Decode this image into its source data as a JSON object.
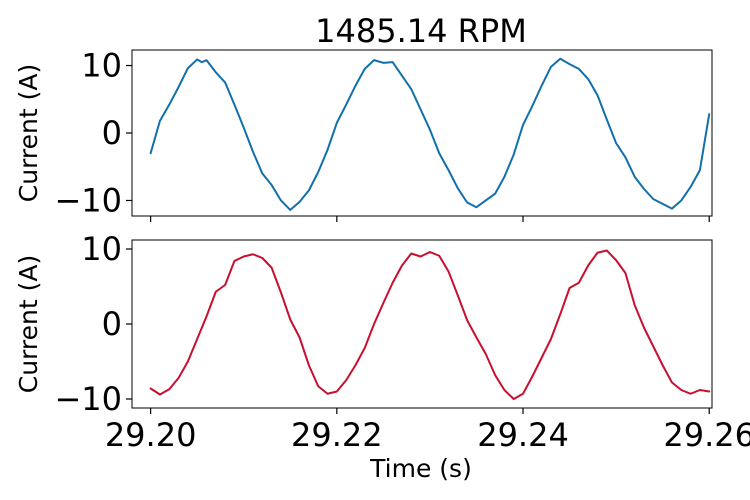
{
  "chart_data": {
    "title": "1485.14 RPM",
    "xlabel": "Time (s)",
    "x_tick_labels": [
      "29.20",
      "29.22",
      "29.24",
      "29.26"
    ],
    "x_ticks": [
      29.2,
      29.22,
      29.24,
      29.26
    ],
    "xlim": [
      29.198,
      29.2603
    ],
    "panels": [
      {
        "type": "line",
        "ylabel": "Current (A)",
        "ylim": [
          -12.3,
          12.3
        ],
        "y_ticks": [
          10,
          0,
          -10
        ],
        "y_tick_labels": [
          "10",
          "0",
          "−10"
        ],
        "series": [
          {
            "color": "#1170aa",
            "x": [
              29.2,
              29.201,
              29.202,
              29.203,
              29.204,
              29.205,
              29.2055,
              29.206,
              29.207,
              29.208,
              29.209,
              29.21,
              29.211,
              29.212,
              29.213,
              29.214,
              29.215,
              29.216,
              29.217,
              29.218,
              29.219,
              29.22,
              29.221,
              29.222,
              29.223,
              29.224,
              29.225,
              29.226,
              29.227,
              29.228,
              29.229,
              29.23,
              29.231,
              29.232,
              29.233,
              29.234,
              29.235,
              29.236,
              29.237,
              29.238,
              29.239,
              29.24,
              29.241,
              29.242,
              29.243,
              29.244,
              29.245,
              29.246,
              29.247,
              29.248,
              29.249,
              29.25,
              29.251,
              29.252,
              29.253,
              29.254,
              29.255,
              29.256,
              29.257,
              29.258,
              29.259,
              29.26
            ],
            "y": [
              -3.0,
              1.8,
              4.2,
              6.8,
              9.6,
              10.9,
              10.5,
              10.8,
              9.0,
              7.5,
              4.2,
              0.8,
              -2.8,
              -6.0,
              -7.7,
              -10.0,
              -11.4,
              -10.2,
              -8.5,
              -5.8,
              -2.5,
              1.5,
              4.2,
              7.0,
              9.5,
              10.8,
              10.4,
              10.5,
              8.5,
              6.5,
              3.5,
              0.5,
              -3.0,
              -5.5,
              -8.2,
              -10.3,
              -11.0,
              -10.0,
              -9.0,
              -6.5,
              -3.2,
              1.2,
              4.0,
              7.0,
              9.8,
              11.0,
              10.2,
              9.5,
              8.0,
              5.6,
              2.0,
              -1.5,
              -3.6,
              -6.5,
              -8.3,
              -9.8,
              -10.5,
              -11.2,
              -10.0,
              -8.0,
              -5.5,
              2.8
            ]
          }
        ]
      },
      {
        "type": "line",
        "ylabel": "Current (A)",
        "ylim": [
          -11.2,
          11.2
        ],
        "y_ticks": [
          10,
          0,
          -10
        ],
        "y_tick_labels": [
          "10",
          "0",
          "−10"
        ],
        "series": [
          {
            "color": "#c8102e",
            "x": [
              29.2,
              29.201,
              29.202,
              29.203,
              29.204,
              29.205,
              29.206,
              29.207,
              29.208,
              29.209,
              29.21,
              29.211,
              29.212,
              29.213,
              29.214,
              29.215,
              29.216,
              29.217,
              29.218,
              29.219,
              29.22,
              29.221,
              29.222,
              29.223,
              29.224,
              29.225,
              29.226,
              29.227,
              29.228,
              29.229,
              29.23,
              29.231,
              29.232,
              29.233,
              29.234,
              29.235,
              29.236,
              29.237,
              29.238,
              29.239,
              29.24,
              29.241,
              29.242,
              29.243,
              29.244,
              29.245,
              29.246,
              29.247,
              29.248,
              29.249,
              29.25,
              29.251,
              29.252,
              29.253,
              29.254,
              29.255,
              29.256,
              29.257,
              29.258,
              29.259,
              29.26
            ],
            "y": [
              -8.6,
              -9.4,
              -8.7,
              -7.2,
              -5.0,
              -2.0,
              1.0,
              4.3,
              5.2,
              8.4,
              9.0,
              9.3,
              8.8,
              7.5,
              4.2,
              0.6,
              -1.8,
              -5.5,
              -8.3,
              -9.3,
              -9.0,
              -7.5,
              -5.5,
              -3.2,
              0.0,
              2.8,
              5.5,
              7.8,
              9.4,
              9.0,
              9.6,
              9.1,
              7.0,
              3.8,
              0.5,
              -1.8,
              -4.0,
              -6.8,
              -8.8,
              -10.0,
              -9.3,
              -7.0,
              -4.5,
              -2.0,
              1.3,
              4.8,
              5.5,
              7.8,
              9.5,
              9.8,
              8.5,
              6.8,
              2.5,
              -0.5,
              -3.0,
              -5.5,
              -7.8,
              -8.8,
              -9.3,
              -8.8,
              -9.0
            ]
          }
        ]
      }
    ]
  }
}
